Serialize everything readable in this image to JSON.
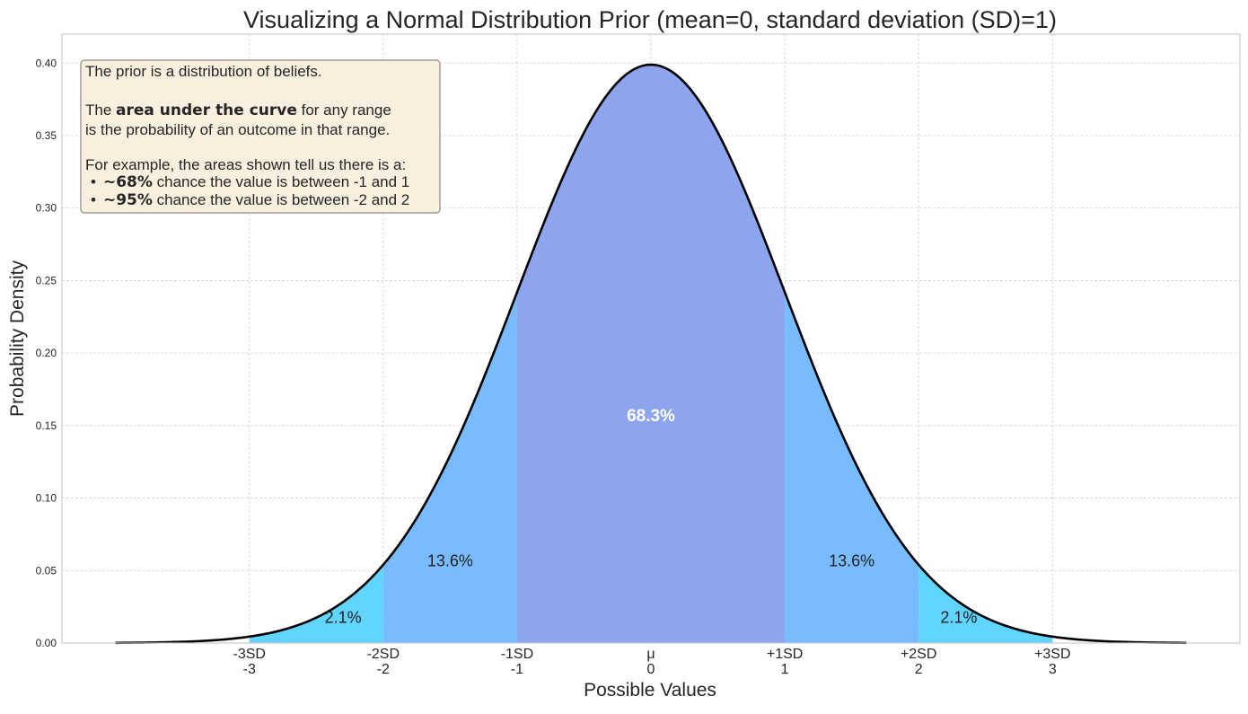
{
  "chart_data": {
    "type": "area",
    "title": "Visualizing a Normal Distribution Prior (mean=0, standard deviation (SD)=1)",
    "xlabel": "Possible Values",
    "ylabel": "Probability Density",
    "mean": 0,
    "sd": 1,
    "curve_range": [
      -4,
      4
    ],
    "xlim": [
      -4.4,
      4.4
    ],
    "ylim": [
      0,
      0.42
    ],
    "grid": true,
    "x_ticks": [
      {
        "value": -3,
        "label1": "-3SD",
        "label2": "-3"
      },
      {
        "value": -2,
        "label1": "-2SD",
        "label2": "-2"
      },
      {
        "value": -1,
        "label1": "-1SD",
        "label2": "-1"
      },
      {
        "value": 0,
        "label1": "μ",
        "label2": "0"
      },
      {
        "value": 1,
        "label1": "+1SD",
        "label2": "1"
      },
      {
        "value": 2,
        "label1": "+2SD",
        "label2": "2"
      },
      {
        "value": 3,
        "label1": "+3SD",
        "label2": "3"
      }
    ],
    "y_ticks": [
      "0.00",
      "0.05",
      "0.10",
      "0.15",
      "0.20",
      "0.25",
      "0.30",
      "0.35",
      "0.40"
    ],
    "regions": [
      {
        "from": -3,
        "to": -2,
        "color": "#62d5fe",
        "label": "2.1%",
        "label_x": -2.3,
        "label_y": 0.014,
        "label_color": "#222222"
      },
      {
        "from": -2,
        "to": -1,
        "color": "#78bbff",
        "label": "13.6%",
        "label_x": -1.5,
        "label_y": 0.053,
        "label_color": "#222222"
      },
      {
        "from": -1,
        "to": 1,
        "color": "#8da5ee",
        "label": "68.3%",
        "label_x": 0,
        "label_y": 0.153,
        "label_color": "#ffffff",
        "label_bold": true
      },
      {
        "from": 1,
        "to": 2,
        "color": "#78bbff",
        "label": "13.6%",
        "label_x": 1.5,
        "label_y": 0.053,
        "label_color": "#222222"
      },
      {
        "from": 2,
        "to": 3,
        "color": "#62d5fe",
        "label": "2.1%",
        "label_x": 2.3,
        "label_y": 0.014,
        "label_color": "#222222"
      }
    ],
    "curve_color": "#000000"
  },
  "annotation": {
    "line1": "The prior is a distribution of beliefs.",
    "line2_pre": "The ",
    "line2_bold": "area under the curve",
    "line2_post": " for any range",
    "line3": "is the probability of an outcome in that range.",
    "line4": "For example, the areas shown tell us there is a:",
    "bullet1_bold": "~68%",
    "bullet1_text": " chance the value is between -1 and 1",
    "bullet2_bold": "~95%",
    "bullet2_text": " chance the value is between -2 and 2",
    "bullet_symbol": "•"
  }
}
